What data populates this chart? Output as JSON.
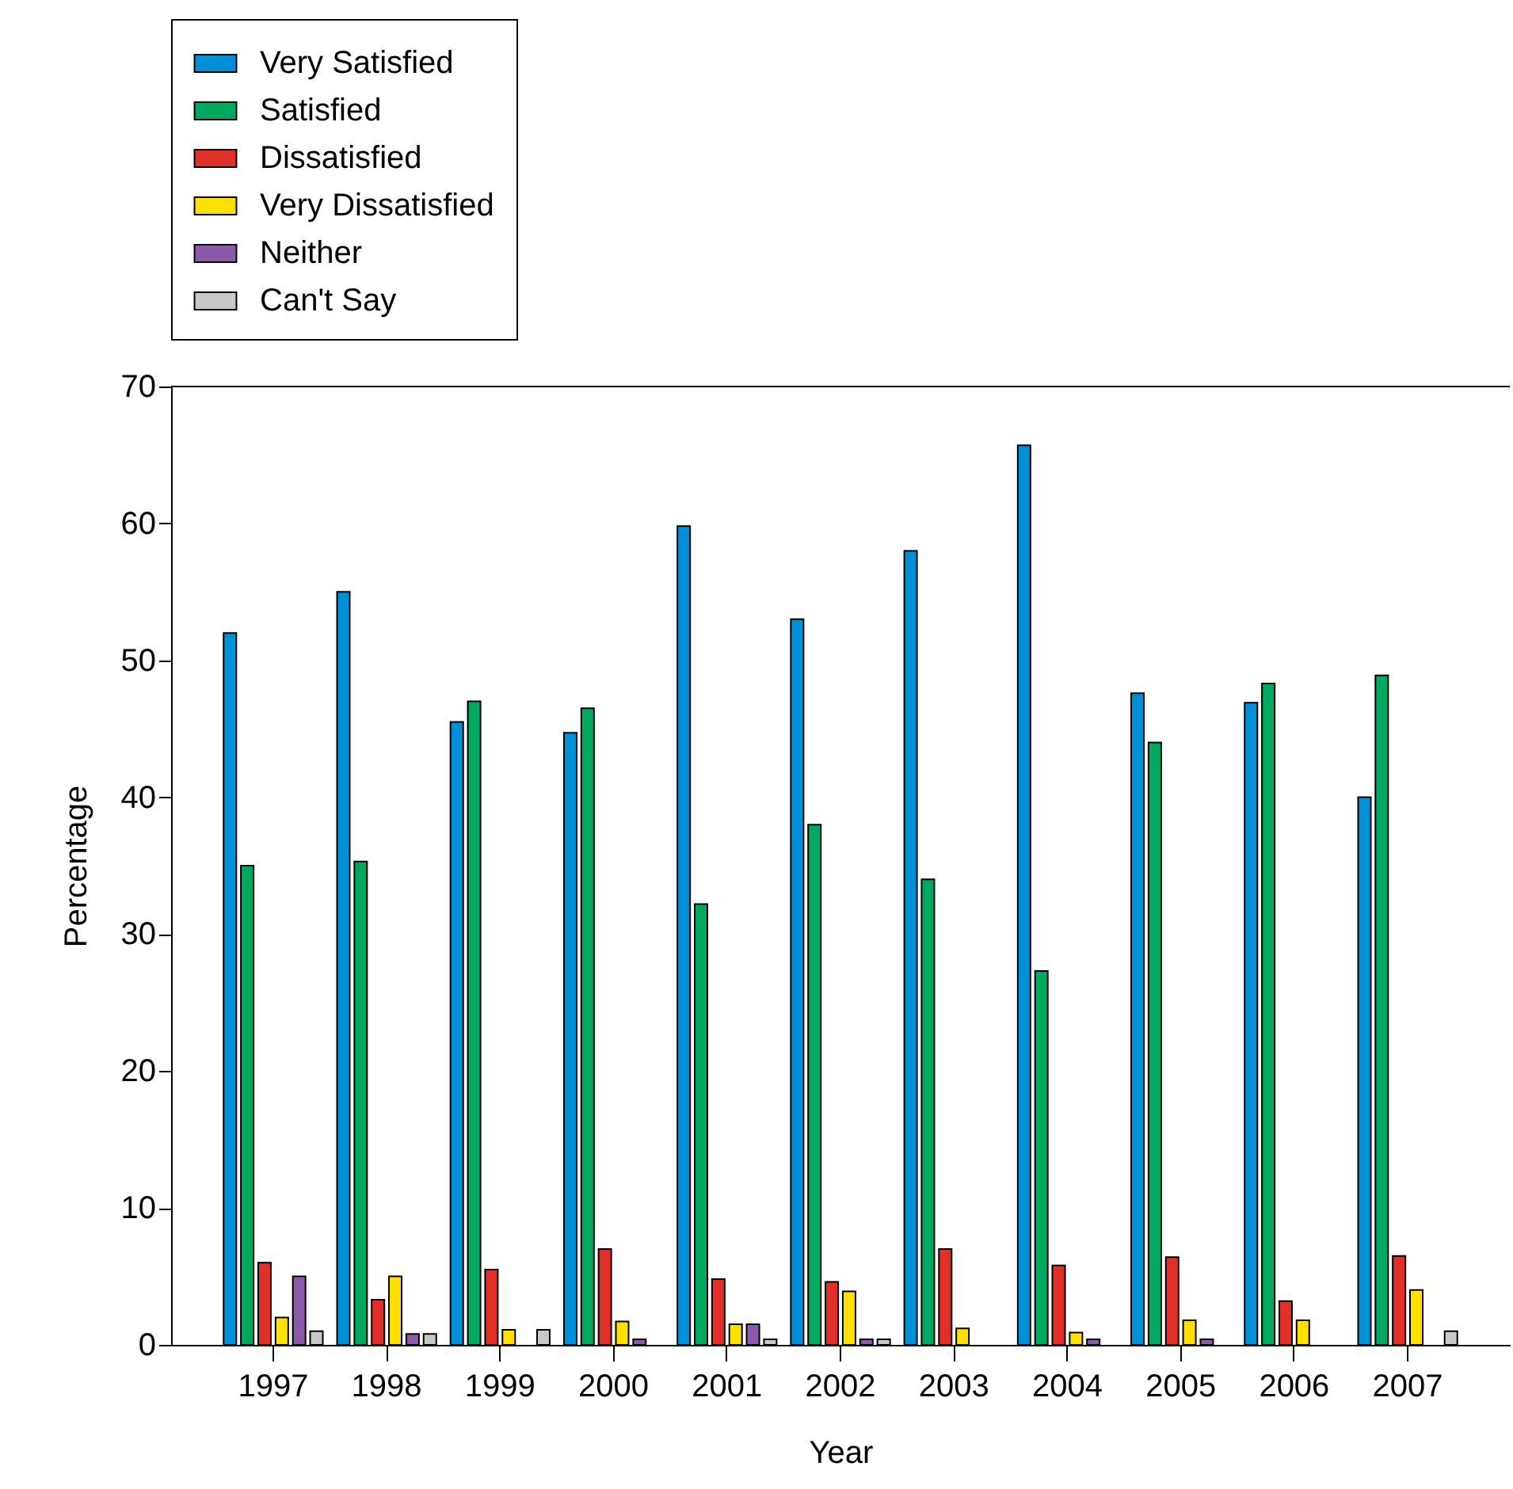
{
  "chart_data": {
    "type": "bar",
    "xlabel": "Year",
    "ylabel": "Percentage",
    "categories": [
      "1997",
      "1998",
      "1999",
      "2000",
      "2001",
      "2002",
      "2003",
      "2004",
      "2005",
      "2006",
      "2007"
    ],
    "series": [
      {
        "name": "Very Satisfied",
        "color": "#0090d8",
        "values": [
          52,
          55,
          45.5,
          44.7,
          59.8,
          53,
          58,
          65.7,
          47.6,
          46.9,
          40
        ]
      },
      {
        "name": "Satisfied",
        "color": "#00a860",
        "values": [
          35,
          35.3,
          47,
          46.5,
          32.2,
          38,
          34,
          27.3,
          44,
          48.3,
          48.9
        ]
      },
      {
        "name": "Dissatisfied",
        "color": "#e0302a",
        "values": [
          6,
          3.3,
          5.5,
          7,
          4.8,
          4.6,
          7,
          5.8,
          6.4,
          3.2,
          6.5
        ]
      },
      {
        "name": "Very Dissatisfied",
        "color": "#ffe000",
        "values": [
          2,
          5,
          1.1,
          1.7,
          1.5,
          3.9,
          1.2,
          0.9,
          1.8,
          1.8,
          4
        ]
      },
      {
        "name": "Neither",
        "color": "#8c5aa8",
        "values": [
          5,
          0.8,
          null,
          0.4,
          1.5,
          0.4,
          null,
          0.4,
          0.4,
          null,
          null
        ]
      },
      {
        "name": "Can't Say",
        "color": "#c8c8c8",
        "values": [
          1,
          0.8,
          1.1,
          null,
          0.4,
          0.4,
          null,
          null,
          null,
          null,
          1
        ]
      }
    ],
    "ylim": [
      0,
      70
    ],
    "yticks": [
      0,
      10,
      20,
      30,
      40,
      50,
      60,
      70
    ],
    "grid": false,
    "legend": "top left"
  }
}
